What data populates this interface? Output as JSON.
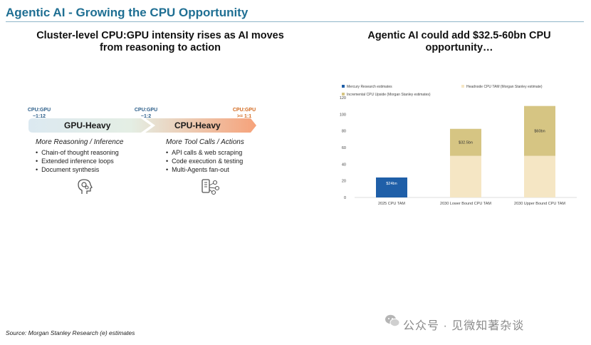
{
  "page": {
    "title": "Agentic AI - Growing the CPU Opportunity",
    "source": "Source: Morgan Stanley Research (e) estimates",
    "watermark": "公众号 · 见微知著杂谈"
  },
  "left_panel": {
    "heading_line1": "Cluster-level CPU:GPU intensity rises as AI moves",
    "heading_line2": "from reasoning to action",
    "ratios": [
      {
        "label": "CPU:GPU",
        "value": "~1:12"
      },
      {
        "label": "CPU:GPU",
        "value": "~1:2"
      },
      {
        "label": "CPU:GPU",
        "value": ">= 1:1"
      }
    ],
    "band_left": "GPU-Heavy",
    "band_right": "CPU-Heavy",
    "reasoning": {
      "title": "More Reasoning / Inference",
      "items": [
        "Chain-of thought reasoning",
        "Extended inference loops",
        "Document synthesis"
      ]
    },
    "tools": {
      "title": "More Tool Calls / Actions",
      "items": [
        "API calls & web scraping",
        "Code execution & testing",
        "Multi-Agents fan-out"
      ]
    },
    "icons": [
      "head-gears-icon",
      "phone-network-icon"
    ],
    "colors": {
      "blue_start": "#dce9f1",
      "orange_end": "#f6a27a",
      "ratio_blue": "#2d5f8a",
      "ratio_orange": "#d2691e"
    }
  },
  "right_panel": {
    "heading_line1": "Agentic AI could add $32.5-60bn CPU",
    "heading_line2": "opportunity…"
  },
  "chart_data": {
    "type": "bar",
    "stacked": true,
    "categories": [
      "2025 CPU TAM",
      "2030 Lower Bound CPU TAM",
      "2030 Upper Bound CPU TAM"
    ],
    "series": [
      {
        "name": "Mercury Research estimates",
        "color": "#1f5fa8",
        "values": [
          24,
          0,
          0
        ],
        "labels": [
          "$24bn",
          "",
          ""
        ]
      },
      {
        "name": "Headnode CPU TAM (Morgan Stanley estimate)",
        "color": "#f5e6c4",
        "values": [
          0,
          50,
          50
        ],
        "labels": [
          "",
          "",
          ""
        ]
      },
      {
        "name": "Incremental CPU Upside (Morgan Stanley estimates)",
        "color": "#d6c583",
        "values": [
          0,
          32.5,
          60
        ],
        "labels": [
          "",
          "$32.5bn",
          "$60bn"
        ]
      }
    ],
    "ylim": [
      0,
      120
    ],
    "yticks": [
      0,
      20,
      40,
      60,
      80,
      100,
      120
    ],
    "grid": false,
    "legend_position": "top"
  }
}
